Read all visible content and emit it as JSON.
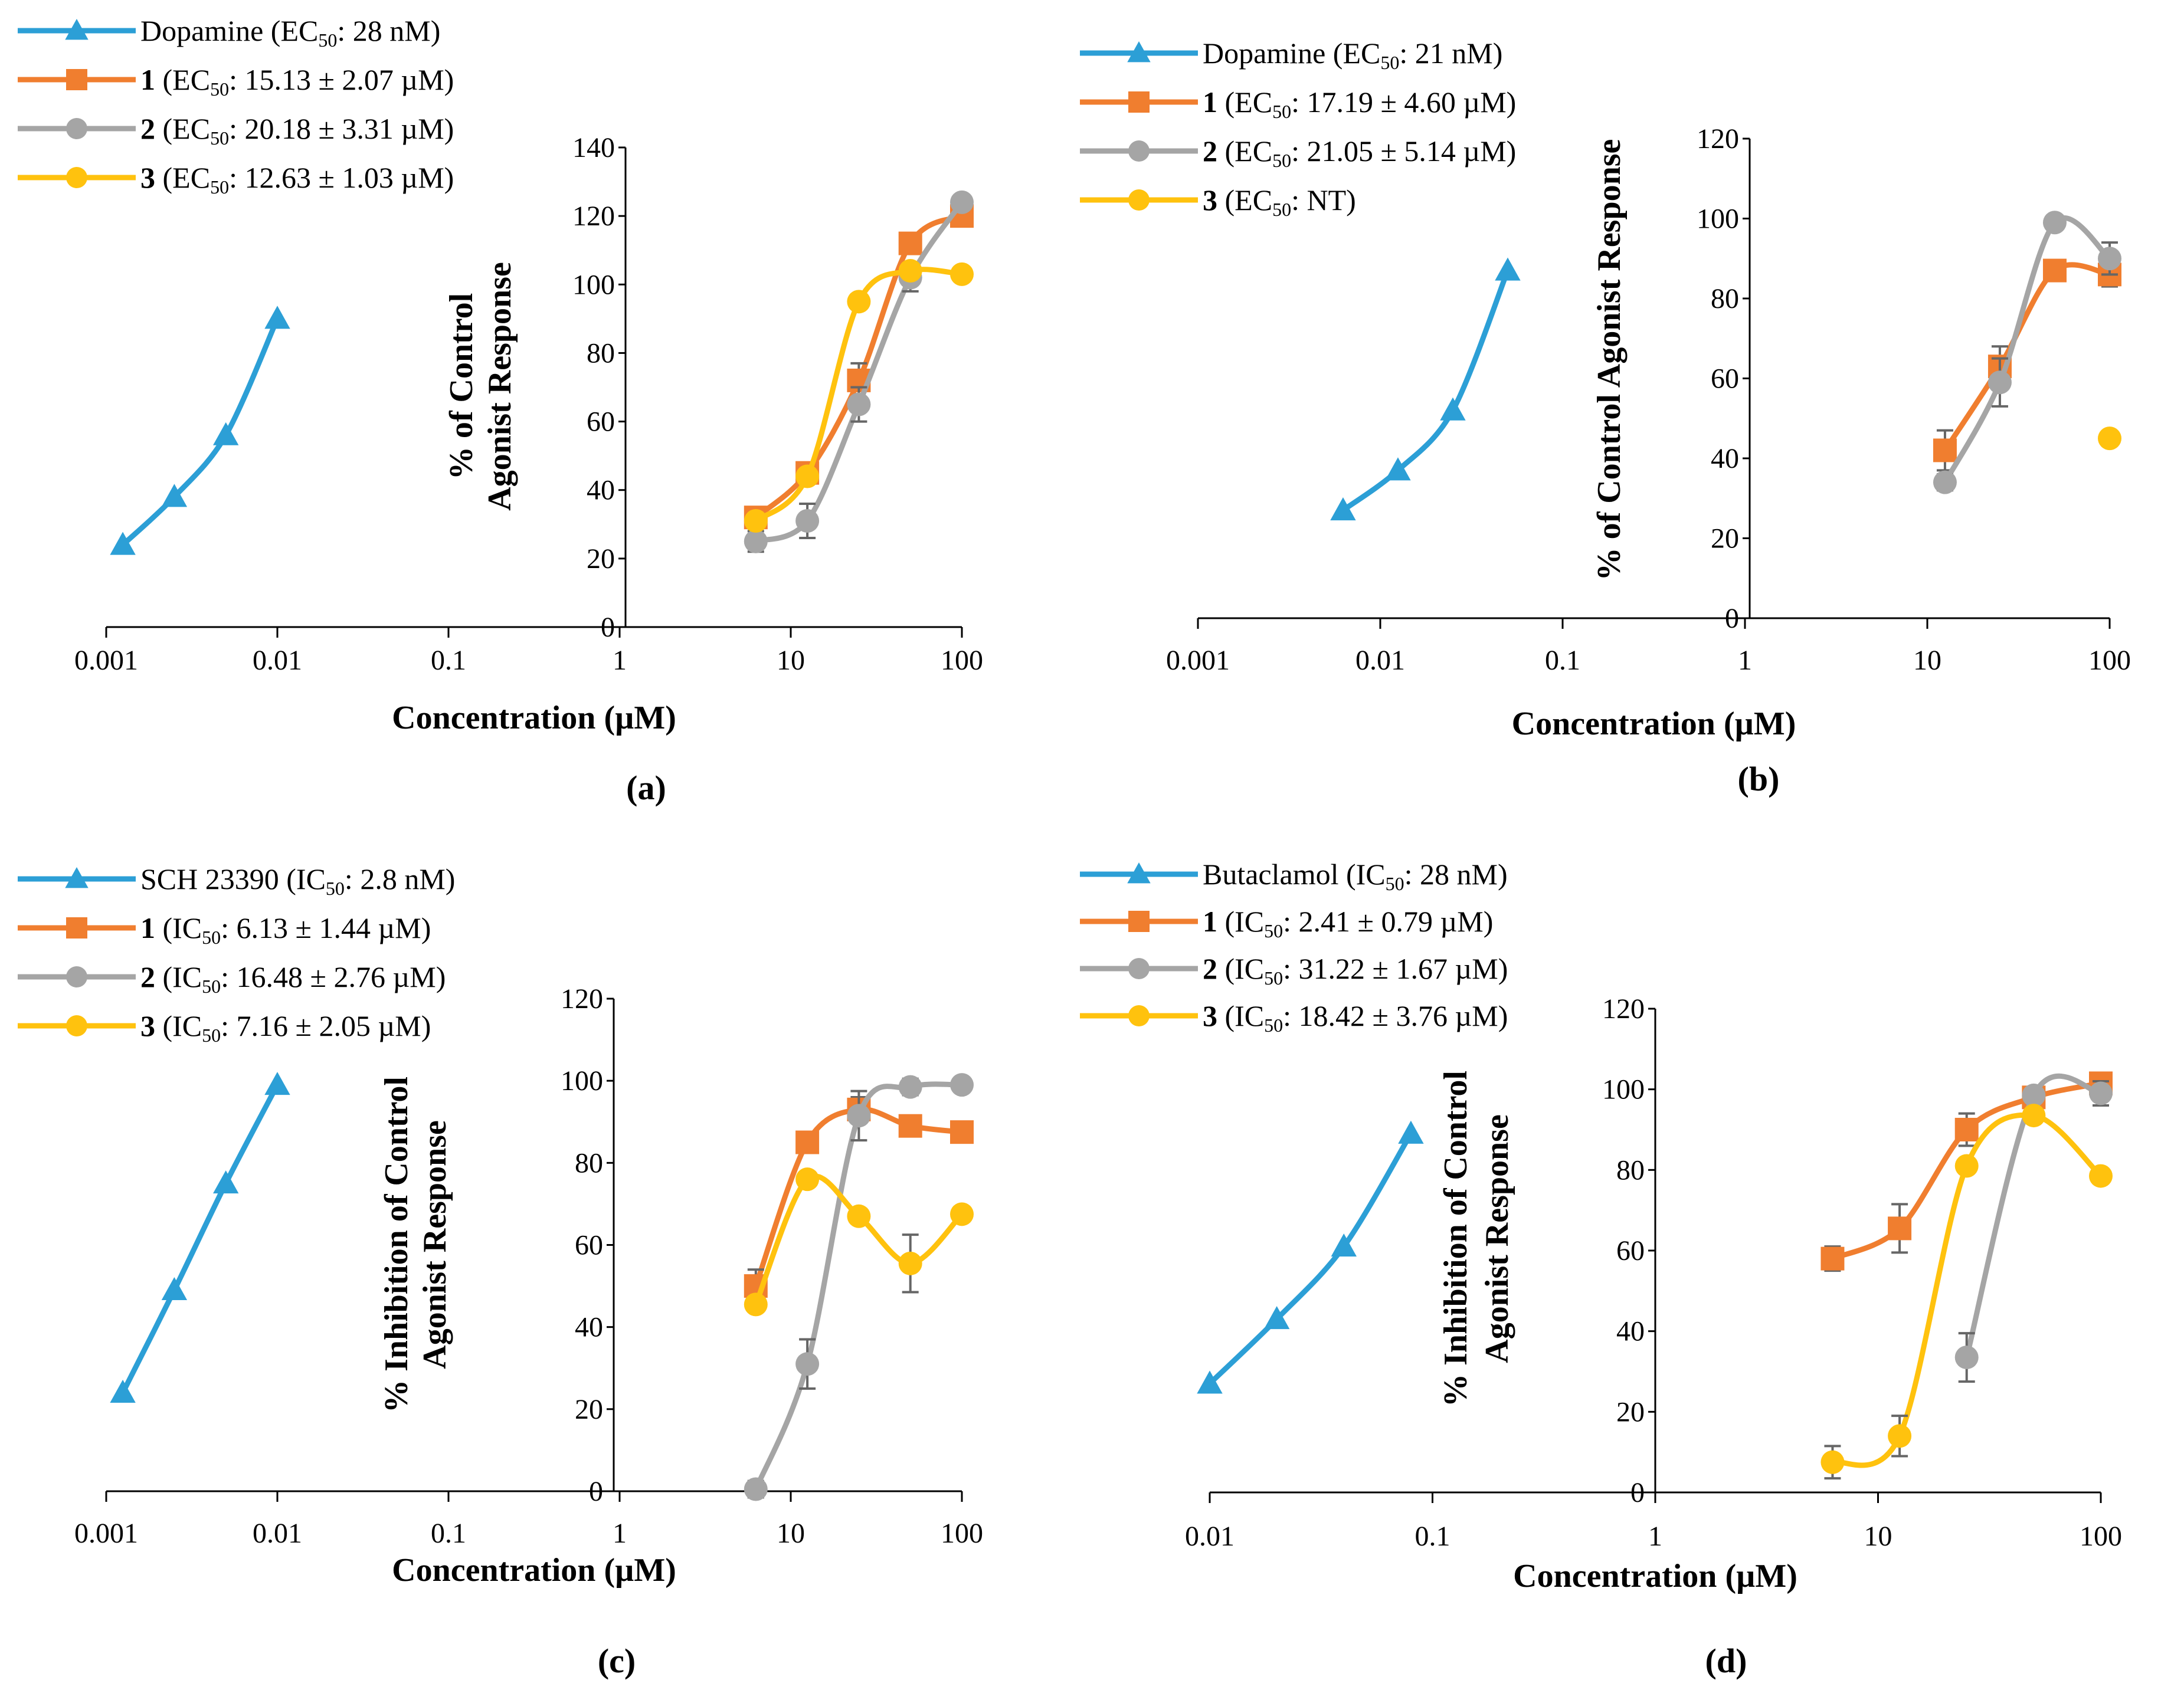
{
  "colors": {
    "blue": "#2C9FD6",
    "orange": "#F07E2F",
    "gray": "#A5A5A5",
    "yellow": "#FFC20E"
  },
  "chart_data": [
    {
      "type": "line",
      "panel_label": "(a)",
      "xlabel": "Concentration (µM)",
      "ylabel": [
        "% of Control",
        "Agonist Response"
      ],
      "xscale": "log",
      "xlim": [
        0.001,
        100
      ],
      "ylim": [
        0,
        140
      ],
      "xticks": [
        "0.001",
        "0.01",
        "0.1",
        "1",
        "10",
        "100"
      ],
      "yticks": [
        "0",
        "20",
        "40",
        "60",
        "80",
        "100",
        "120",
        "140"
      ],
      "series": [
        {
          "name": "Dopamine",
          "legend_bold": "",
          "legend_pre": "Dopamine (",
          "legend_sub_base": "EC",
          "legend_sub": "50",
          "legend_post": ": 28 nM)",
          "color": "blue",
          "marker": "triangle",
          "x": [
            0.00125,
            0.0025,
            0.005,
            0.01
          ],
          "y": [
            24,
            38,
            56,
            90
          ],
          "err": [
            0,
            0,
            0,
            0
          ]
        },
        {
          "name": "1",
          "legend_bold": "1",
          "legend_pre": " (",
          "legend_sub_base": "EC",
          "legend_sub": "50",
          "legend_post": ": 15.13 ± 2.07 µM)",
          "color": "orange",
          "marker": "square",
          "x": [
            6.25,
            12.5,
            25,
            50,
            100
          ],
          "y": [
            32,
            45,
            72,
            112,
            120
          ],
          "err": [
            2,
            2,
            5,
            3,
            2
          ]
        },
        {
          "name": "2",
          "legend_bold": "2",
          "legend_pre": " (",
          "legend_sub_base": "EC",
          "legend_sub": "50",
          "legend_post": ": 20.18 ± 3.31 µM)",
          "color": "gray",
          "marker": "circle",
          "x": [
            6.25,
            12.5,
            25,
            50,
            100
          ],
          "y": [
            25,
            31,
            65,
            102,
            124
          ],
          "err": [
            3,
            5,
            5,
            4,
            2
          ]
        },
        {
          "name": "3",
          "legend_bold": "3",
          "legend_pre": " (",
          "legend_sub_base": "EC",
          "legend_sub": "50",
          "legend_post": ": 12.63 ± 1.03 µM)",
          "color": "yellow",
          "marker": "circle",
          "x": [
            6.25,
            12.5,
            25,
            50,
            100
          ],
          "y": [
            31,
            44,
            95,
            104,
            103
          ],
          "err": [
            0,
            0,
            0,
            0,
            0
          ]
        }
      ]
    },
    {
      "type": "line",
      "panel_label": "(b)",
      "xlabel": "Concentration (µM)",
      "ylabel": [
        "% of Control Agonist Response"
      ],
      "xscale": "log",
      "xlim": [
        0.001,
        100
      ],
      "ylim": [
        0,
        120
      ],
      "xticks": [
        "0.001",
        "0.01",
        "0.1",
        "1",
        "10",
        "100"
      ],
      "yticks": [
        "0",
        "20",
        "40",
        "60",
        "80",
        "100",
        "120"
      ],
      "series": [
        {
          "name": "Dopamine",
          "legend_bold": "",
          "legend_pre": "Dopamine (",
          "legend_sub_base": "EC",
          "legend_sub": "50",
          "legend_post": ": 21 nM)",
          "color": "blue",
          "marker": "triangle",
          "x": [
            0.00625,
            0.0125,
            0.025,
            0.05
          ],
          "y": [
            27,
            37,
            52,
            87
          ],
          "err": [
            0,
            0,
            0,
            0
          ]
        },
        {
          "name": "1",
          "legend_bold": "1",
          "legend_pre": " (",
          "legend_sub_base": "EC",
          "legend_sub": "50",
          "legend_post": ": 17.19 ± 4.60 µM)",
          "color": "orange",
          "marker": "square",
          "x": [
            12.5,
            25,
            50,
            100
          ],
          "y": [
            42,
            63,
            87,
            86
          ],
          "err": [
            5,
            5,
            2,
            3
          ]
        },
        {
          "name": "2",
          "legend_bold": "2",
          "legend_pre": " (",
          "legend_sub_base": "EC",
          "legend_sub": "50",
          "legend_post": ": 21.05 ± 5.14 µM)",
          "color": "gray",
          "marker": "circle",
          "x": [
            12.5,
            25,
            50,
            100
          ],
          "y": [
            34,
            59,
            99,
            90
          ],
          "err": [
            2,
            6,
            1,
            4
          ]
        },
        {
          "name": "3",
          "legend_bold": "3",
          "legend_pre": " (",
          "legend_sub_base": "EC",
          "legend_sub": "50",
          "legend_post": ": NT)",
          "color": "yellow",
          "marker": "circle",
          "x": [
            100
          ],
          "y": [
            45
          ],
          "err": [
            0
          ]
        }
      ]
    },
    {
      "type": "line",
      "panel_label": "(c)",
      "xlabel": "Concentration (µM)",
      "ylabel": [
        "% Inhibition of Control",
        "Agonist Response"
      ],
      "xscale": "log",
      "xlim": [
        0.001,
        100
      ],
      "ylim": [
        0,
        120
      ],
      "xticks": [
        "0.001",
        "0.01",
        "0.1",
        "1",
        "10",
        "100"
      ],
      "yticks": [
        "0",
        "20",
        "40",
        "60",
        "80",
        "100",
        "120"
      ],
      "series": [
        {
          "name": "SCH 23390",
          "legend_bold": "",
          "legend_pre": "SCH 23390 (",
          "legend_sub_base": "IC",
          "legend_sub": "50",
          "legend_post": ": 2.8 nM)",
          "color": "blue",
          "marker": "triangle",
          "x": [
            0.00125,
            0.0025,
            0.005,
            0.01
          ],
          "y": [
            24,
            49,
            75,
            99
          ],
          "err": [
            0,
            0,
            0,
            0
          ]
        },
        {
          "name": "1",
          "legend_bold": "1",
          "legend_pre": " (",
          "legend_sub_base": "IC",
          "legend_sub": "50",
          "legend_post": ": 6.13 ± 1.44 µM)",
          "color": "orange",
          "marker": "square",
          "x": [
            6.25,
            12.5,
            25,
            50,
            100
          ],
          "y": [
            50,
            85,
            93,
            89,
            87.5
          ],
          "err": [
            4,
            2,
            3,
            2,
            2
          ]
        },
        {
          "name": "2",
          "legend_bold": "2",
          "legend_pre": " (",
          "legend_sub_base": "IC",
          "legend_sub": "50",
          "legend_post": ": 16.48 ± 2.76 µM)",
          "color": "gray",
          "marker": "circle",
          "x": [
            6.25,
            12.5,
            25,
            50,
            100
          ],
          "y": [
            0.5,
            31,
            91.5,
            98.5,
            99
          ],
          "err": [
            2,
            6,
            6,
            2,
            1
          ]
        },
        {
          "name": "3",
          "legend_bold": "3",
          "legend_pre": " (",
          "legend_sub_base": "IC",
          "legend_sub": "50",
          "legend_post": ": 7.16 ± 2.05 µM)",
          "color": "yellow",
          "marker": "circle",
          "x": [
            6.25,
            12.5,
            25,
            50,
            100
          ],
          "y": [
            45.5,
            76,
            67,
            55.5,
            67.5
          ],
          "err": [
            0,
            0,
            0,
            7,
            0
          ]
        }
      ]
    },
    {
      "type": "line",
      "panel_label": "(d)",
      "xlabel": "Concentration (µM)",
      "ylabel": [
        "% Inhibition of Control",
        "Agonist Response"
      ],
      "xscale": "log",
      "xlim": [
        0.01,
        100
      ],
      "ylim": [
        0,
        120
      ],
      "xticks": [
        "0.01",
        "0.1",
        "1",
        "10",
        "100"
      ],
      "yticks": [
        "0",
        "20",
        "40",
        "60",
        "80",
        "100",
        "120"
      ],
      "series": [
        {
          "name": "Butaclamol",
          "legend_bold": "",
          "legend_pre": "Butaclamol (",
          "legend_sub_base": "IC",
          "legend_sub": "50",
          "legend_post": ": 28 nM)",
          "color": "blue",
          "marker": "triangle",
          "x": [
            0.01,
            0.02,
            0.04,
            0.08
          ],
          "y": [
            27,
            43,
            61,
            89
          ],
          "err": [
            0,
            0,
            0,
            0
          ]
        },
        {
          "name": "1",
          "legend_bold": "1",
          "legend_pre": " (",
          "legend_sub_base": "IC",
          "legend_sub": "50",
          "legend_post": ": 2.41 ± 0.79 µM)",
          "color": "orange",
          "marker": "square",
          "x": [
            6.25,
            12.5,
            25,
            50,
            100
          ],
          "y": [
            58,
            65.5,
            90,
            98,
            101.5
          ],
          "err": [
            3,
            6,
            4,
            1,
            2
          ]
        },
        {
          "name": "2",
          "legend_bold": "2",
          "legend_pre": " (",
          "legend_sub_base": "IC",
          "legend_sub": "50",
          "legend_post": ": 31.22 ± 1.67 µM)",
          "color": "gray",
          "marker": "circle",
          "x": [
            25,
            50,
            100
          ],
          "y": [
            33.5,
            98.5,
            99
          ],
          "err": [
            6,
            1,
            3
          ]
        },
        {
          "name": "3",
          "legend_bold": "3",
          "legend_pre": " (",
          "legend_sub_base": "IC",
          "legend_sub": "50",
          "legend_post": ": 18.42 ± 3.76 µM)",
          "color": "yellow",
          "marker": "circle",
          "x": [
            6.25,
            12.5,
            25,
            50,
            100
          ],
          "y": [
            7.5,
            14,
            81,
            93.5,
            78.5
          ],
          "err": [
            4,
            5,
            0,
            0,
            0
          ]
        }
      ]
    }
  ]
}
